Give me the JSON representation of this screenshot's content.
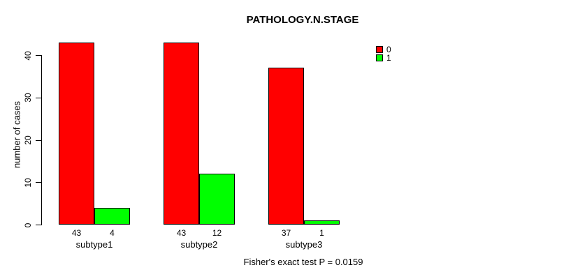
{
  "chart_data": {
    "type": "bar",
    "title": "PATHOLOGY.N.STAGE",
    "xlabel": "",
    "ylabel": "number of cases",
    "categories": [
      "subtype1",
      "subtype2",
      "subtype3"
    ],
    "series": [
      {
        "name": "0",
        "color": "#ff0000",
        "values": [
          43,
          43,
          37
        ]
      },
      {
        "name": "1",
        "color": "#00ff00",
        "values": [
          4,
          12,
          1
        ]
      }
    ],
    "bar_value_labels": [
      [
        43,
        4
      ],
      [
        43,
        12
      ],
      [
        37,
        1
      ]
    ],
    "ylim": [
      0,
      40
    ],
    "yticks": [
      0,
      10,
      20,
      30,
      40
    ],
    "grid": false,
    "legend_position": "top-right",
    "legend_items": [
      {
        "label": "0",
        "color": "#ff0000"
      },
      {
        "label": "1",
        "color": "#00ff00"
      }
    ],
    "annotation": "Fisher's exact test P = 0.0159"
  },
  "colors": {
    "series0": "#ff0000",
    "series1": "#00ff00",
    "axis": "#000000",
    "background": "#ffffff"
  }
}
